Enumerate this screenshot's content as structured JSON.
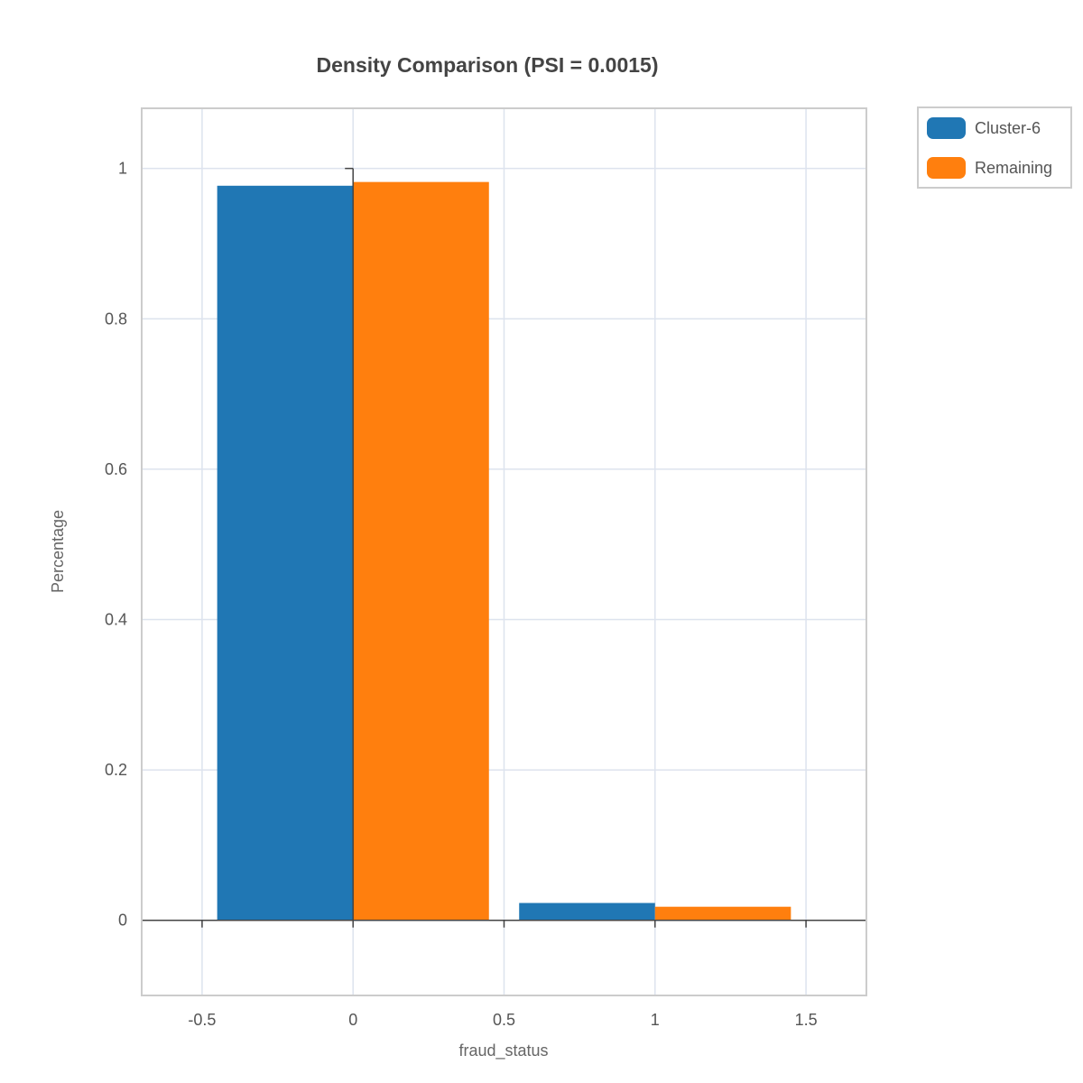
{
  "chart_data": {
    "type": "bar",
    "title": "Density Comparison (PSI = 0.0015)",
    "xlabel": "fraud_status",
    "ylabel": "Percentage",
    "x": [
      0,
      1
    ],
    "bar_width": 0.9,
    "series": [
      {
        "name": "Cluster-6",
        "color": "#2077b4",
        "values": [
          0.977,
          0.023
        ]
      },
      {
        "name": "Remaining",
        "color": "#ff7f0e",
        "values": [
          0.982,
          0.018
        ]
      }
    ],
    "xlim": [
      -0.7,
      1.7
    ],
    "ylim": [
      -0.1,
      1.08
    ],
    "x_ticks": [
      -0.5,
      0,
      0.5,
      1,
      1.5
    ],
    "x_tick_labels": [
      "-0.5",
      "0",
      "0.5",
      "1",
      "1.5"
    ],
    "y_ticks": [
      0,
      0.2,
      0.4,
      0.6,
      0.8,
      1
    ],
    "y_tick_labels": [
      "0",
      "0.2",
      "0.4",
      "0.6",
      "0.8",
      "1"
    ],
    "grid": true,
    "legend_position": "top-right-outside"
  }
}
